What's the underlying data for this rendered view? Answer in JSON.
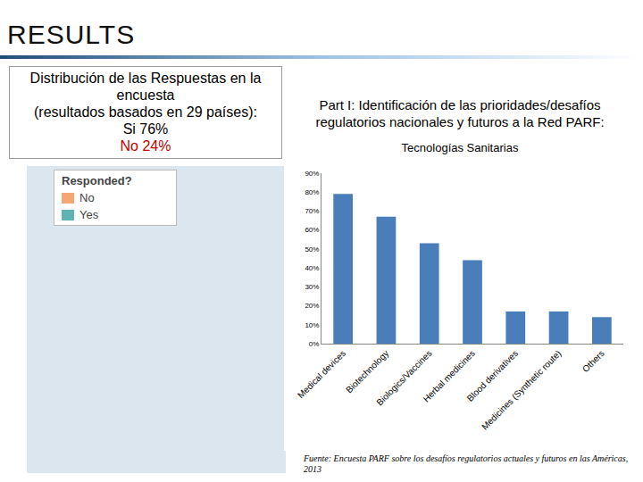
{
  "slide": {
    "header": "RESULTS",
    "box": {
      "lines": [
        "Distribución de las Respuestas en la encuesta",
        "(resultados basados en 29 países):",
        "Si 76%"
      ],
      "red_line": "No 24%"
    },
    "map_legend": {
      "title": "Responded?",
      "items": [
        {
          "label": "No",
          "color": "#f4a774"
        },
        {
          "label": "Yes",
          "color": "#5fb3b3"
        }
      ]
    },
    "source": "Fuente: Encuesta PARF sobre los desafíos regulatorios actuales y futuros en las Américas, 2013"
  },
  "chart_data": {
    "type": "bar",
    "title": "Part I: Identificación de las prioridades/desafíos regulatorios nacionales y futuros a la Red PARF:",
    "subtitle": "Tecnologías Sanitarias",
    "categories": [
      "Medical devices",
      "Biotechnology",
      "Biologics/Vaccines",
      "Herbal medicines",
      "Blood derivatives",
      "Medicines (Synthetic route)",
      "Others"
    ],
    "values": [
      79,
      67,
      53,
      44,
      17,
      17,
      14
    ],
    "color": "#4a7ebb",
    "ylim": [
      0,
      90
    ],
    "yticks": [
      {
        "value": 0,
        "label": "0%"
      },
      {
        "value": 10,
        "label": "10%"
      },
      {
        "value": 20,
        "label": "20%"
      },
      {
        "value": 30,
        "label": "30%"
      },
      {
        "value": 40,
        "label": "40%"
      },
      {
        "value": 50,
        "label": "50%"
      },
      {
        "value": 60,
        "label": "60%"
      },
      {
        "value": 70,
        "label": "70%"
      },
      {
        "value": 80,
        "label": "80%"
      },
      {
        "value": 90,
        "label": "90%"
      }
    ],
    "grid": false
  }
}
